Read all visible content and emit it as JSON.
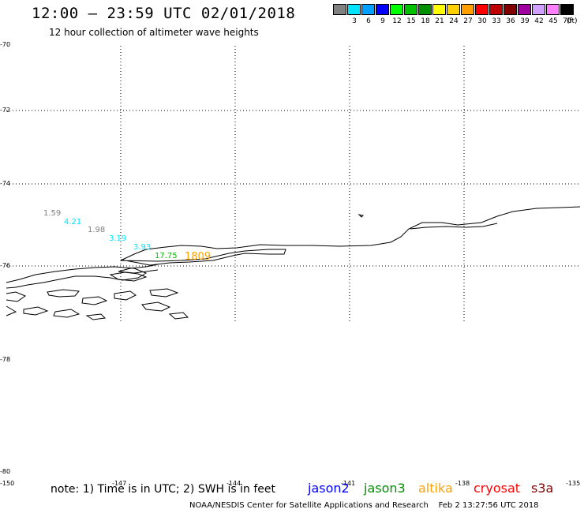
{
  "title": "12:00 – 23:59 UTC 02/01/2018",
  "subtitle": "12 hour collection of altimeter wave heights",
  "colorbar": {
    "unit": "(ft)",
    "entries": [
      {
        "label": "",
        "color": "#808080"
      },
      {
        "label": "3",
        "color": "#00e5ff"
      },
      {
        "label": "6",
        "color": "#00a0ff"
      },
      {
        "label": "9",
        "color": "#0000ff"
      },
      {
        "label": "12",
        "color": "#00ff00"
      },
      {
        "label": "15",
        "color": "#00c000"
      },
      {
        "label": "18",
        "color": "#009000"
      },
      {
        "label": "21",
        "color": "#ffff00"
      },
      {
        "label": "24",
        "color": "#ffd000"
      },
      {
        "label": "27",
        "color": "#ffa000"
      },
      {
        "label": "30",
        "color": "#ff0000"
      },
      {
        "label": "33",
        "color": "#c00000"
      },
      {
        "label": "36",
        "color": "#800000"
      },
      {
        "label": "39",
        "color": "#a000a0"
      },
      {
        "label": "42",
        "color": "#d0a0ff"
      },
      {
        "label": "45",
        "color": "#ff80ff"
      },
      {
        "label": "70",
        "color": "#000000"
      }
    ]
  },
  "axes": {
    "lat_labels": [
      "-70",
      "-72",
      "-74",
      "-76",
      "-78",
      "-80"
    ],
    "lon_labels": [
      "-150",
      "-147",
      "-144",
      "-141",
      "-138",
      "-135"
    ]
  },
  "wave_heights": [
    {
      "value": "1.59",
      "color": "#808080"
    },
    {
      "value": "4.21",
      "color": "#00e5ff"
    },
    {
      "value": "1.98",
      "color": "#808080"
    },
    {
      "value": "3.19",
      "color": "#00e5ff"
    },
    {
      "value": "3.93",
      "color": "#00e5ff"
    },
    {
      "value": "17.75",
      "color": "#00c000"
    },
    {
      "value": "1809",
      "color": "#ffa000"
    }
  ],
  "note": "note: 1) Time is in UTC; 2) SWH is in feet",
  "satellites": [
    {
      "name": "jason2",
      "color": "#0000ff"
    },
    {
      "name": "jason3",
      "color": "#009000"
    },
    {
      "name": "altika",
      "color": "#ffa000"
    },
    {
      "name": "cryosat",
      "color": "#ff0000"
    },
    {
      "name": "s3a",
      "color": "#800000"
    }
  ],
  "credit": "NOAA/NESDIS Center for Satellite Applications and Research",
  "timestamp": "Feb  2 13:27:56 UTC 2018"
}
